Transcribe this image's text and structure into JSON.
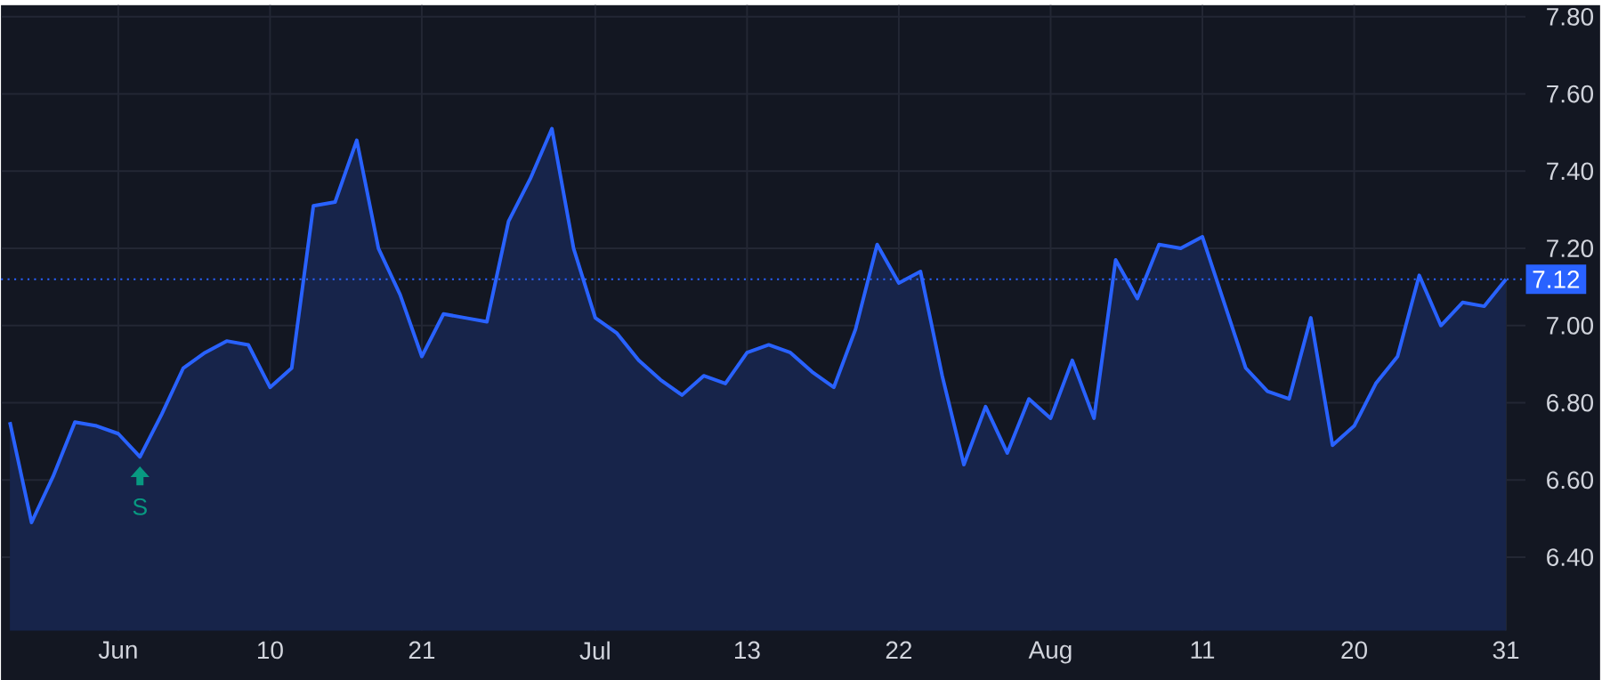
{
  "chart_data": {
    "type": "area",
    "categories": [
      null,
      null,
      null,
      null,
      null,
      "Jun",
      null,
      null,
      null,
      null,
      null,
      null,
      "10",
      null,
      null,
      null,
      null,
      null,
      null,
      "21",
      null,
      null,
      null,
      null,
      null,
      null,
      null,
      "Jul",
      null,
      null,
      null,
      null,
      null,
      null,
      "13",
      null,
      null,
      null,
      null,
      null,
      null,
      "22",
      null,
      null,
      null,
      null,
      null,
      null,
      "Aug",
      null,
      null,
      null,
      null,
      null,
      null,
      "11",
      null,
      null,
      null,
      null,
      null,
      null,
      "20",
      null,
      null,
      null,
      null,
      null,
      null,
      "31"
    ],
    "series": [
      {
        "color": "#2962ff",
        "values": [
          6.75,
          6.49,
          6.61,
          6.75,
          6.74,
          6.72,
          6.66,
          6.77,
          6.89,
          6.93,
          6.96,
          6.95,
          6.84,
          6.89,
          7.31,
          7.32,
          7.48,
          7.2,
          7.08,
          6.92,
          7.03,
          7.02,
          7.01,
          7.27,
          7.38,
          7.51,
          7.2,
          7.02,
          6.98,
          6.91,
          6.86,
          6.82,
          6.87,
          6.85,
          6.93,
          6.95,
          6.93,
          6.88,
          6.84,
          6.99,
          7.21,
          7.11,
          7.14,
          6.87,
          6.64,
          6.79,
          6.67,
          6.81,
          6.76,
          6.91,
          6.76,
          7.17,
          7.07,
          7.21,
          7.2,
          7.23,
          7.06,
          6.89,
          6.83,
          6.81,
          7.02,
          6.69,
          6.74,
          6.85,
          6.92,
          7.13,
          7,
          7.06,
          7.05,
          7.12
        ]
      }
    ],
    "ylim": [
      6.21,
      7.83
    ],
    "yticks": [
      {
        "value": 6.4,
        "label": "6.40"
      },
      {
        "value": 6.6,
        "label": "6.60"
      },
      {
        "value": 6.8,
        "label": "6.80"
      },
      {
        "value": 7.0,
        "label": "7.00"
      },
      {
        "value": 7.2,
        "label": "7.20"
      },
      {
        "value": 7.4,
        "label": "7.40"
      },
      {
        "value": 7.6,
        "label": "7.60"
      },
      {
        "value": 7.8,
        "label": "7.80"
      }
    ],
    "grid": true,
    "ref_lines": [
      {
        "axis": "y",
        "value": 7.12,
        "label": "7.12",
        "color": "#2962ff",
        "line_style": "dotted"
      }
    ],
    "annotations": [
      {
        "text": "S",
        "y": 6.66
      }
    ]
  }
}
